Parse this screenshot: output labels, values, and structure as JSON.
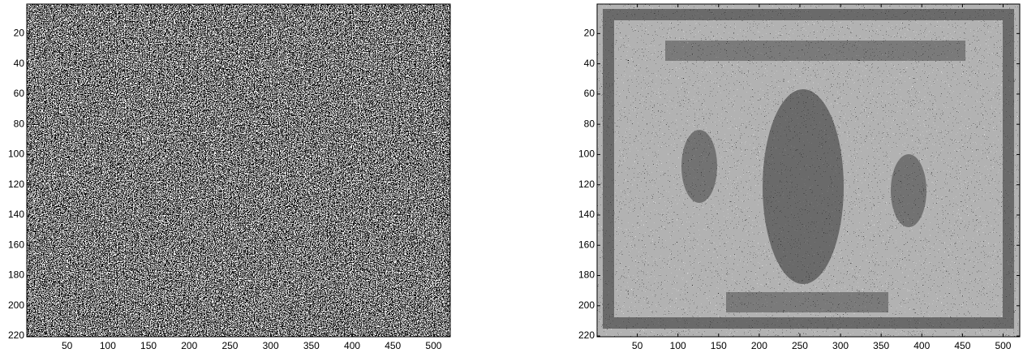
{
  "chart_data": [
    {
      "type": "image",
      "xlim": [
        0.5,
        520.5
      ],
      "ylim": [
        0.5,
        220.5
      ],
      "y_reversed": true,
      "xticks": [
        50,
        100,
        150,
        200,
        250,
        300,
        350,
        400,
        450,
        500
      ],
      "yticks": [
        20,
        40,
        60,
        80,
        100,
        120,
        140,
        160,
        180,
        200,
        220
      ]
    },
    {
      "type": "image",
      "xlim": [
        0.5,
        520.5
      ],
      "ylim": [
        0.5,
        220.5
      ],
      "y_reversed": true,
      "xticks": [
        50,
        100,
        150,
        200,
        250,
        300,
        350,
        400,
        450,
        500
      ],
      "yticks": [
        20,
        40,
        60,
        80,
        100,
        120,
        140,
        160,
        180,
        200,
        220
      ]
    }
  ]
}
